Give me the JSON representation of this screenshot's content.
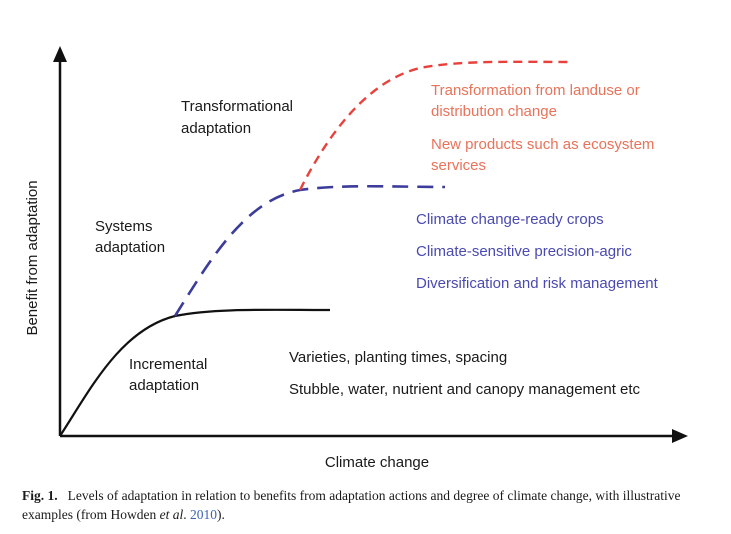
{
  "axes": {
    "x_label": "Climate change",
    "y_label": "Benefit from adaptation"
  },
  "stages": {
    "incremental": {
      "title": [
        "Incremental",
        "adaptation"
      ],
      "examples": [
        "Varieties, planting times, spacing",
        "Stubble, water, nutrient and canopy management etc"
      ],
      "color": "#1a1a1a"
    },
    "systems": {
      "title": [
        "Systems",
        "adaptation"
      ],
      "examples": [
        "Climate change-ready crops",
        "Climate-sensitive precision-agric",
        "Diversification and risk management"
      ],
      "color": "#3c3c9a"
    },
    "transformational": {
      "title": [
        "Transformational",
        "adaptation"
      ],
      "examples": [
        "Transformation from landuse or",
        "distribution change",
        "New products such as ecosystem",
        "services"
      ],
      "color": "#e8413c"
    }
  },
  "caption": {
    "fig_label": "Fig. 1.",
    "text_part1": "Levels of adaptation in relation to benefits from adaptation actions and degree of climate change, with illustrative examples (from Howden ",
    "et_al": "et al",
    "text_part2": ". ",
    "year": "2010",
    "text_part3": ")."
  }
}
